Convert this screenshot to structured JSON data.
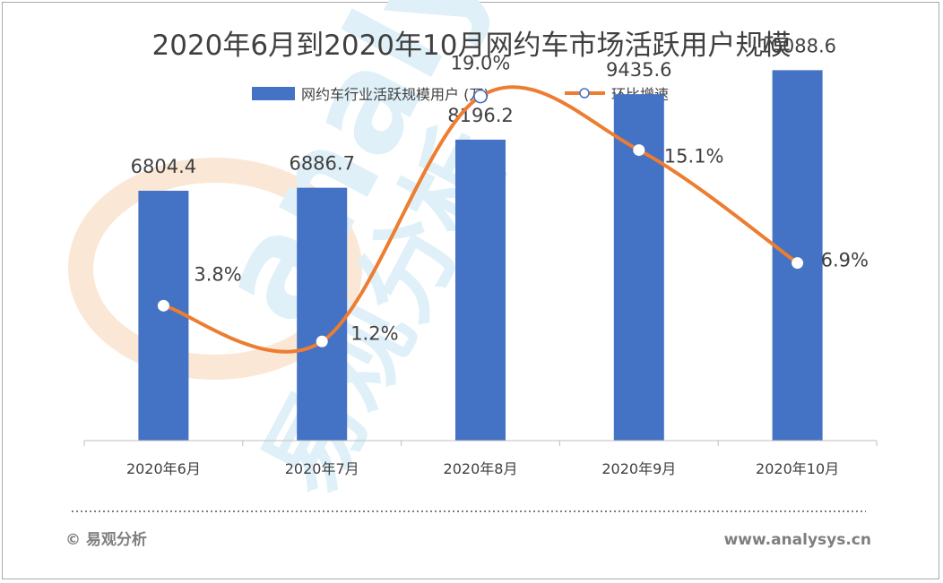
{
  "chart_data": {
    "type": "bar",
    "title": "2020年6月到2020年10月网约车市场活跃用户规模",
    "categories": [
      "2020年6月",
      "2020年7月",
      "2020年8月",
      "2020年9月",
      "2020年10月"
    ],
    "series": [
      {
        "name": "网约车行业活跃规模用户 (万)",
        "type": "bar",
        "axis": "left",
        "color": "#4472c4",
        "values": [
          6804.4,
          6886.7,
          8196.2,
          9435.6,
          10088.6
        ],
        "labels": [
          "6804.4",
          "6886.7",
          "8196.2",
          "9435.6",
          "10088.6"
        ]
      },
      {
        "name": "环比增速",
        "type": "line",
        "axis": "right",
        "color": "#ed7d31",
        "smooth": true,
        "values": [
          3.8,
          1.2,
          19.0,
          15.1,
          6.9
        ],
        "labels": [
          "3.8%",
          "1.2%",
          "19.0%",
          "15.1%",
          "6.9%"
        ]
      }
    ],
    "ylim_left": [
      0,
      12000
    ],
    "ylim_right": [
      -6,
      26
    ],
    "legend_position": "top",
    "grid": false
  },
  "watermark": {
    "text_en": "analysys",
    "text_cn": "易观分析",
    "color": "#dff0f8"
  },
  "footer": {
    "left": "© 易观分析",
    "right": "www.analysys.cn"
  }
}
